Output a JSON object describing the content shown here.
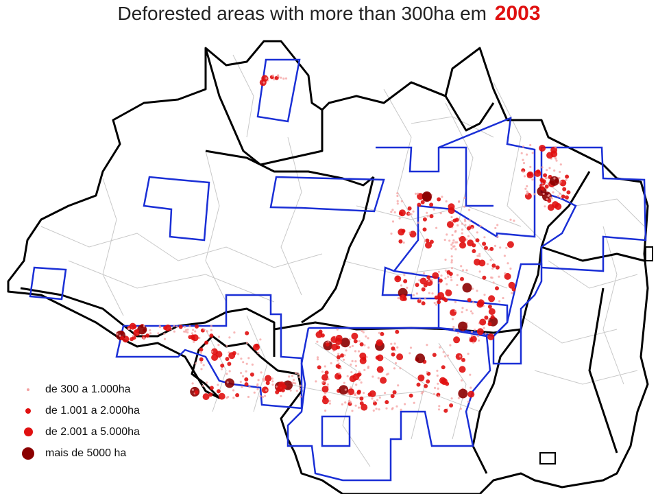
{
  "title": {
    "text": "Deforested areas with more than 300ha em",
    "year": "2003"
  },
  "legend": [
    {
      "label": "de 300 a 1.000ha",
      "color": "#f4a0a0",
      "size_class": "small"
    },
    {
      "label": "de 1.001 a 2.000ha",
      "color": "#e01010",
      "size_class": "medium"
    },
    {
      "label": "de 2.001 a 5.000ha",
      "color": "#e01010",
      "size_class": "large"
    },
    {
      "label": "mais de 5000 ha",
      "color": "#8b0000",
      "size_class": "xlarge"
    }
  ],
  "colors": {
    "state_border": "#000000",
    "municipal_border": "#c0c0c0",
    "survey_frame": "#1a2fd6",
    "accent": "#e01010"
  }
}
